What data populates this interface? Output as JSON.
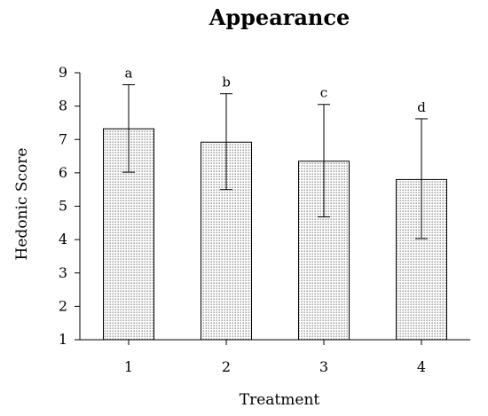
{
  "chart_data": {
    "type": "bar",
    "title": "Appearance",
    "xlabel": "Treatment",
    "ylabel": "Hedonic Score",
    "categories": [
      "1",
      "2",
      "3",
      "4"
    ],
    "values": [
      7.32,
      6.92,
      6.35,
      5.8
    ],
    "error_plus": [
      1.32,
      1.45,
      1.7,
      1.82
    ],
    "error_minus": [
      1.3,
      1.42,
      1.67,
      1.77
    ],
    "significance_letters": [
      "a",
      "b",
      "c",
      "d"
    ],
    "ylim": [
      1,
      9
    ],
    "yticks": [
      "1",
      "2",
      "3",
      "4",
      "5",
      "6",
      "7",
      "8",
      "9"
    ],
    "bar_fill": "dotted-gray",
    "grid": false
  }
}
